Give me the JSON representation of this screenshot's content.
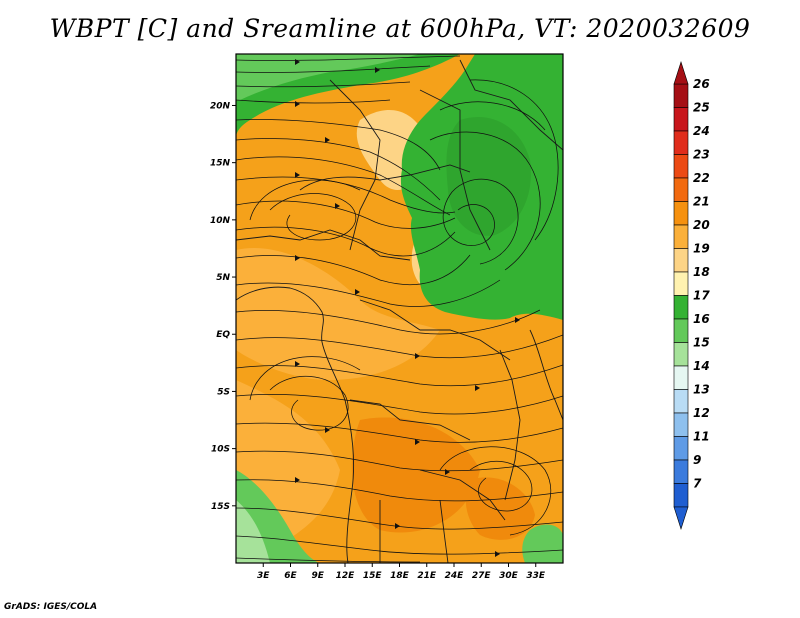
{
  "title": "WBPT [C] and Sreamline at 600hPa, VT: 2020032609",
  "credit": "GrADS: IGES/COLA",
  "map": {
    "lon_ticks": [
      "3E",
      "6E",
      "9E",
      "12E",
      "15E",
      "18E",
      "21E",
      "24E",
      "27E",
      "30E",
      "33E"
    ],
    "lat_ticks": [
      "20N",
      "15N",
      "10N",
      "5N",
      "EQ",
      "5S",
      "10S",
      "15S"
    ],
    "lon_values": [
      3,
      6,
      9,
      12,
      15,
      18,
      21,
      24,
      27,
      30,
      33
    ],
    "lat_values": [
      20,
      15,
      10,
      5,
      0,
      -5,
      -10,
      -15
    ],
    "lon_range": [
      0,
      36
    ],
    "lat_range": [
      -20,
      24.5
    ]
  },
  "colorbar": {
    "labels": [
      "26",
      "25",
      "24",
      "23",
      "22",
      "21",
      "20",
      "19",
      "18",
      "17",
      "16",
      "15",
      "14",
      "13",
      "12",
      "11",
      "9",
      "7"
    ],
    "colors": [
      "#a50f15",
      "#c8161c",
      "#e02d1c",
      "#ec4a14",
      "#f26a10",
      "#f6910f",
      "#fbb03a",
      "#fdd486",
      "#fff2b0",
      "#34b233",
      "#63c95a",
      "#a6e29a",
      "#e6f7f2",
      "#b9dcf5",
      "#8ec0ee",
      "#5f9be6",
      "#3b7bdd",
      "#1f5ed1"
    ]
  }
}
